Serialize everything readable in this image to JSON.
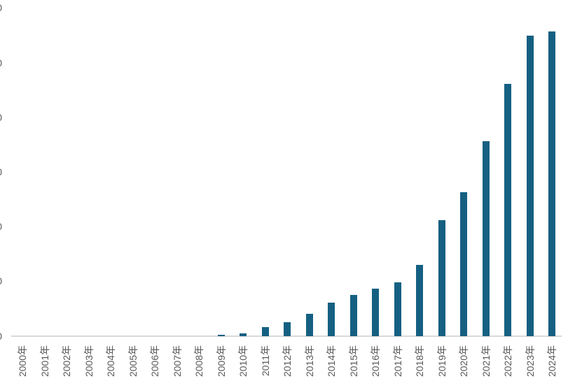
{
  "chart_data": {
    "type": "bar",
    "title": "",
    "xlabel": "",
    "ylabel": "",
    "categories": [
      "2000年",
      "2001年",
      "2002年",
      "2003年",
      "2004年",
      "2005年",
      "2006年",
      "2007年",
      "2008年",
      "2009年",
      "2010年",
      "2011年",
      "2012年",
      "2013年",
      "2014年",
      "2015年",
      "2016年",
      "2017年",
      "2018年",
      "2019年",
      "2020年",
      "2021年",
      "2022年",
      "2023年",
      "2024年"
    ],
    "values": [
      0,
      0,
      0,
      0,
      0,
      0,
      0,
      0,
      0,
      0.3,
      0.55,
      1.65,
      2.55,
      4.1,
      6.2,
      7.6,
      8.75,
      9.8,
      13.1,
      21.2,
      26.3,
      35.7,
      46.2,
      55.0,
      55.8
    ],
    "ylim": [
      0,
      62.8
    ],
    "y_tick_interval_estimated": 10,
    "y_tick_labels_clipped": true,
    "grid": false,
    "legend": "none",
    "bar_color": "#156082",
    "axis_line_color": "#d9d9d9",
    "label_color": "#595959"
  },
  "y_axis": {
    "tick_fragments": [
      "0",
      "0",
      "0",
      "0",
      "0",
      "0",
      "0"
    ]
  }
}
